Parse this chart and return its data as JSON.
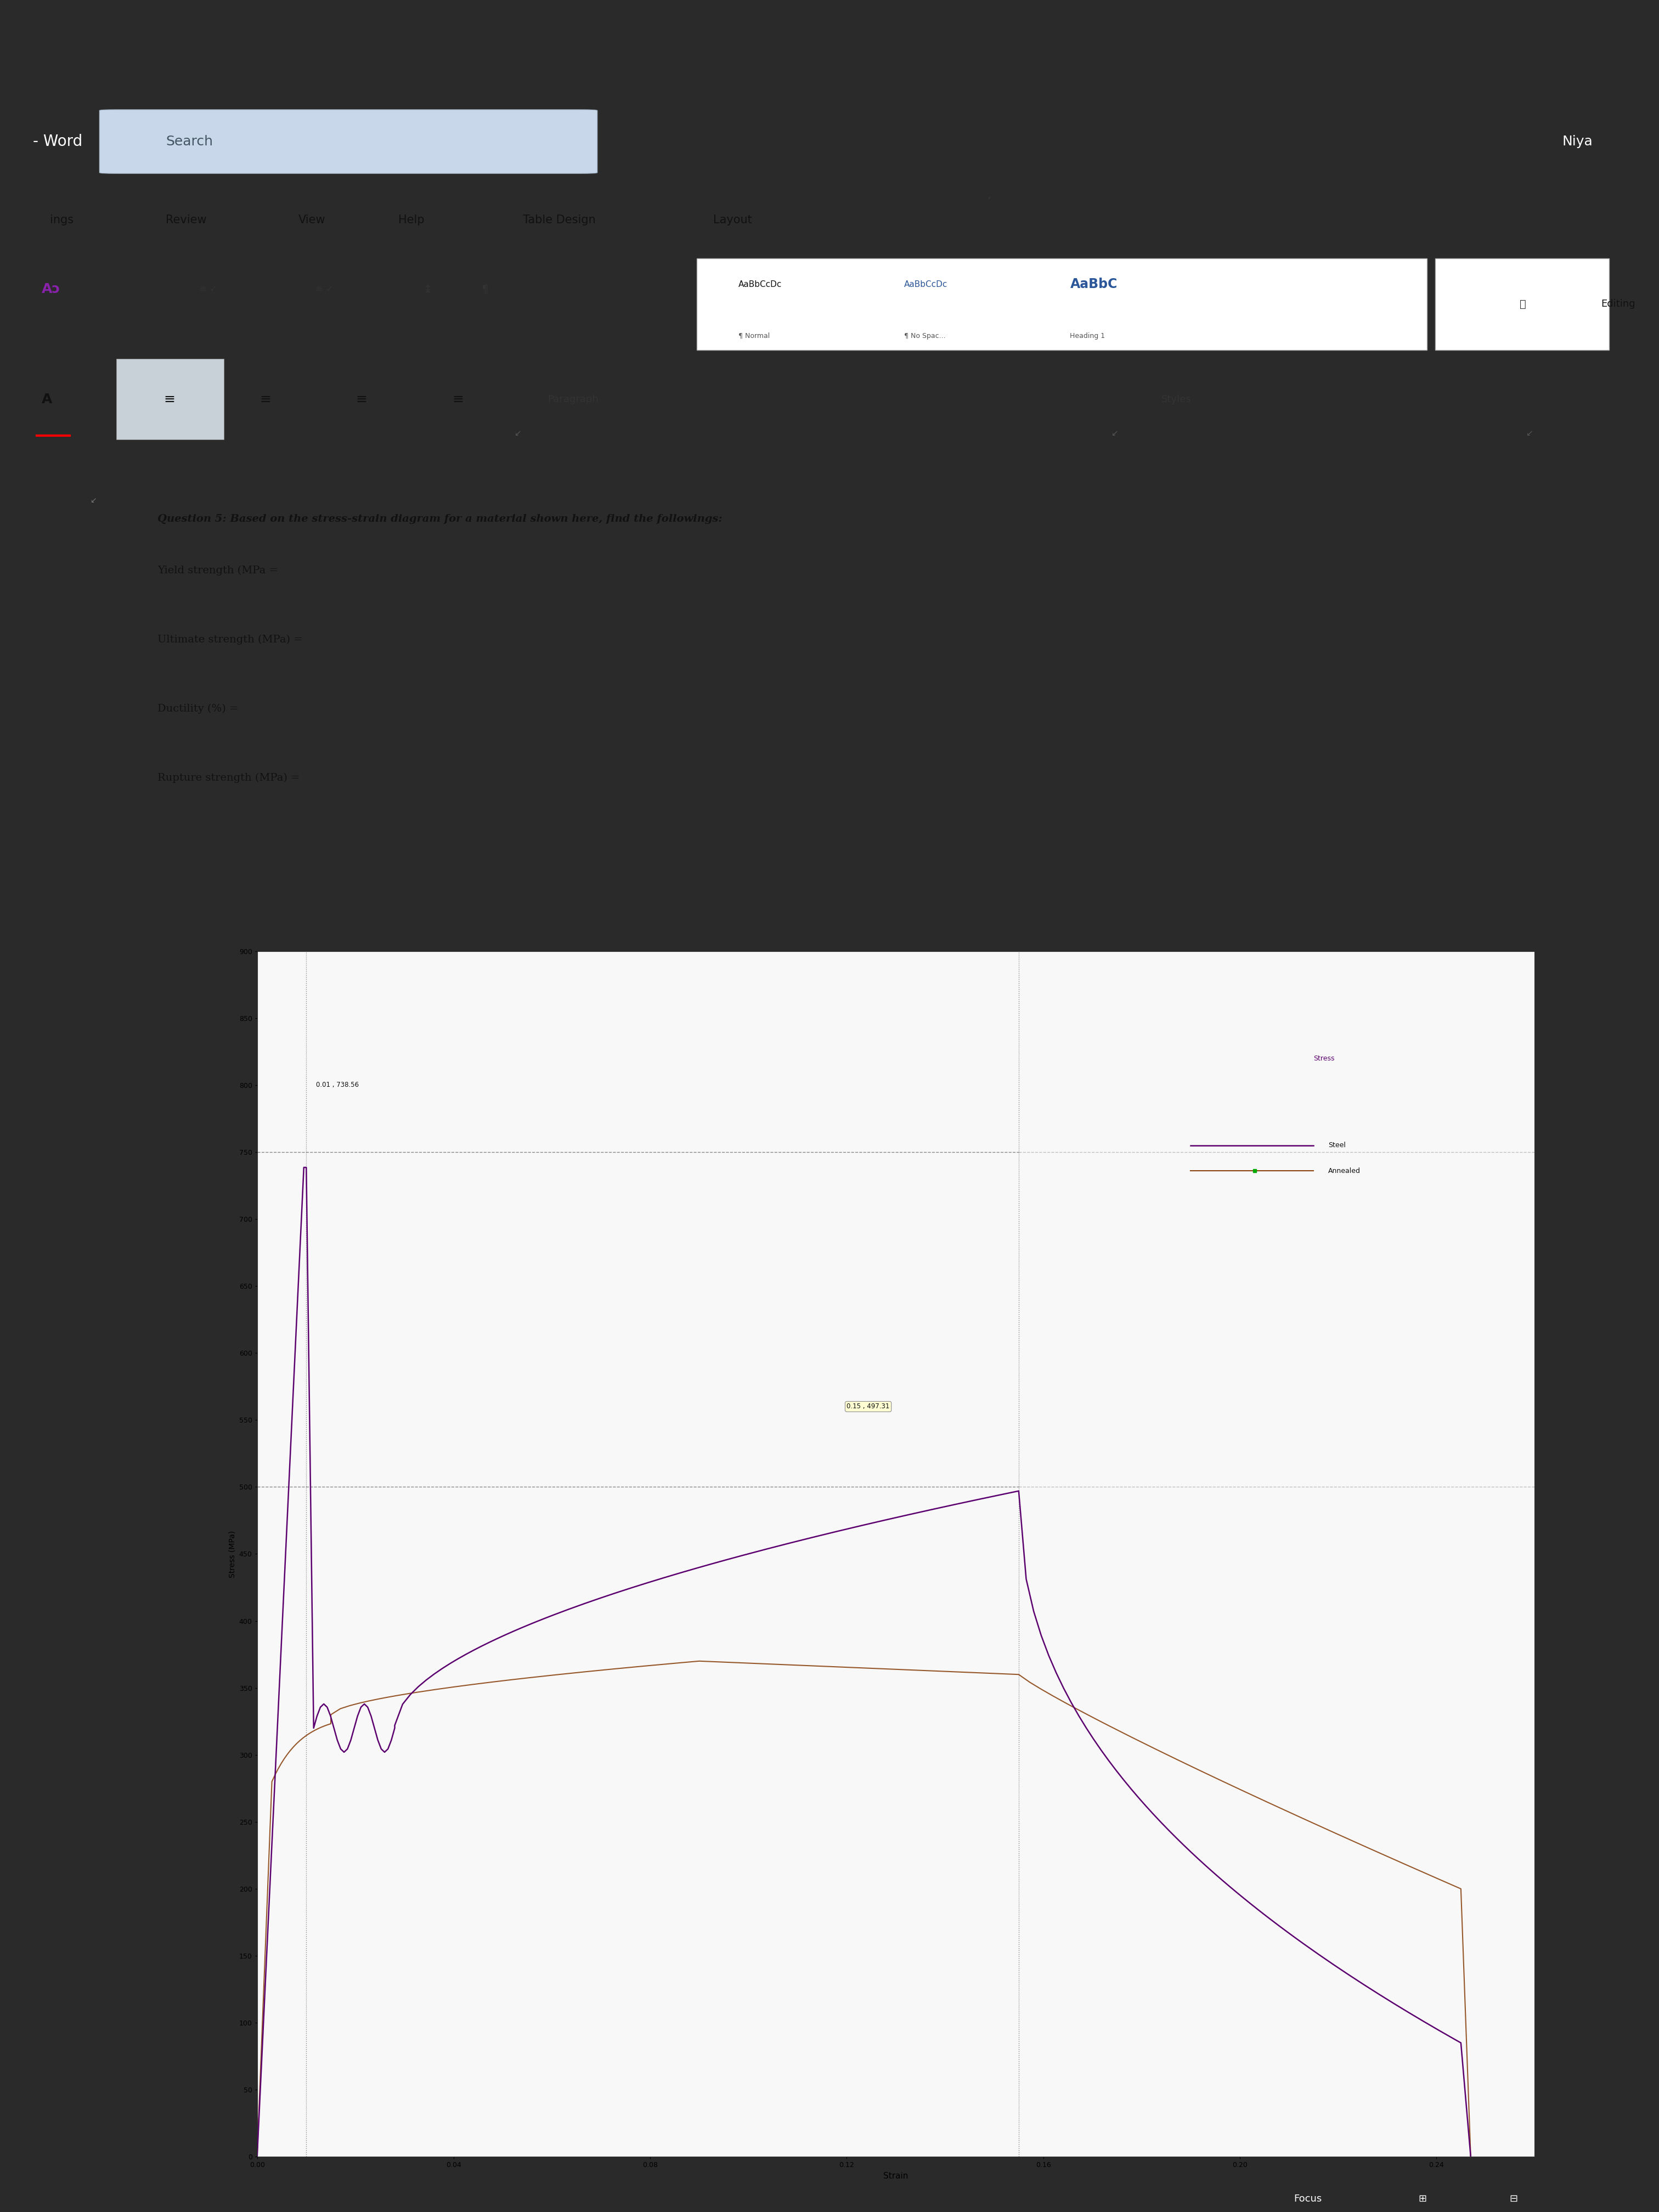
{
  "title_q_bold": "Question 5: ",
  "title_q_italic": "Based",
  "title_q_rest": " on the stress-strain diagram for a material shown here, find the followings:",
  "q1": "Yield strength (MPa =",
  "q2": "Ultimate strength (MPa) =",
  "q3": "Ductility (%) =",
  "q4": "Rupture strength (MPa) =",
  "outer_bg": "#2a2a2a",
  "toolbar_dark": "#1a1a2e",
  "ribbon_blue": "#2b579a",
  "ribbon_light": "#dce6f0",
  "ribbon_mid": "#e8ecf0",
  "doc_bg": "#e8e8e8",
  "page_bg": "#f5f5f5",
  "chart_bg": "#f8f8f8",
  "steel_color": "#5c0070",
  "annealed_color": "#8b4513",
  "xlabel": "Strain",
  "ylabel": "Stress (MPa)",
  "ylim": [
    0,
    900
  ],
  "xlim": [
    0.0,
    0.26
  ],
  "yticks": [
    0,
    50,
    100,
    150,
    200,
    250,
    300,
    350,
    400,
    450,
    500,
    550,
    600,
    650,
    700,
    750,
    800,
    850,
    900
  ],
  "xticks": [
    0.0,
    0.04,
    0.08,
    0.12,
    0.16,
    0.2,
    0.24
  ],
  "annotation1": "0.01 , 738.56",
  "annotation2": "0.15 , 497.31",
  "legend_steel": "Steel",
  "legend_annealed": "Annealed"
}
